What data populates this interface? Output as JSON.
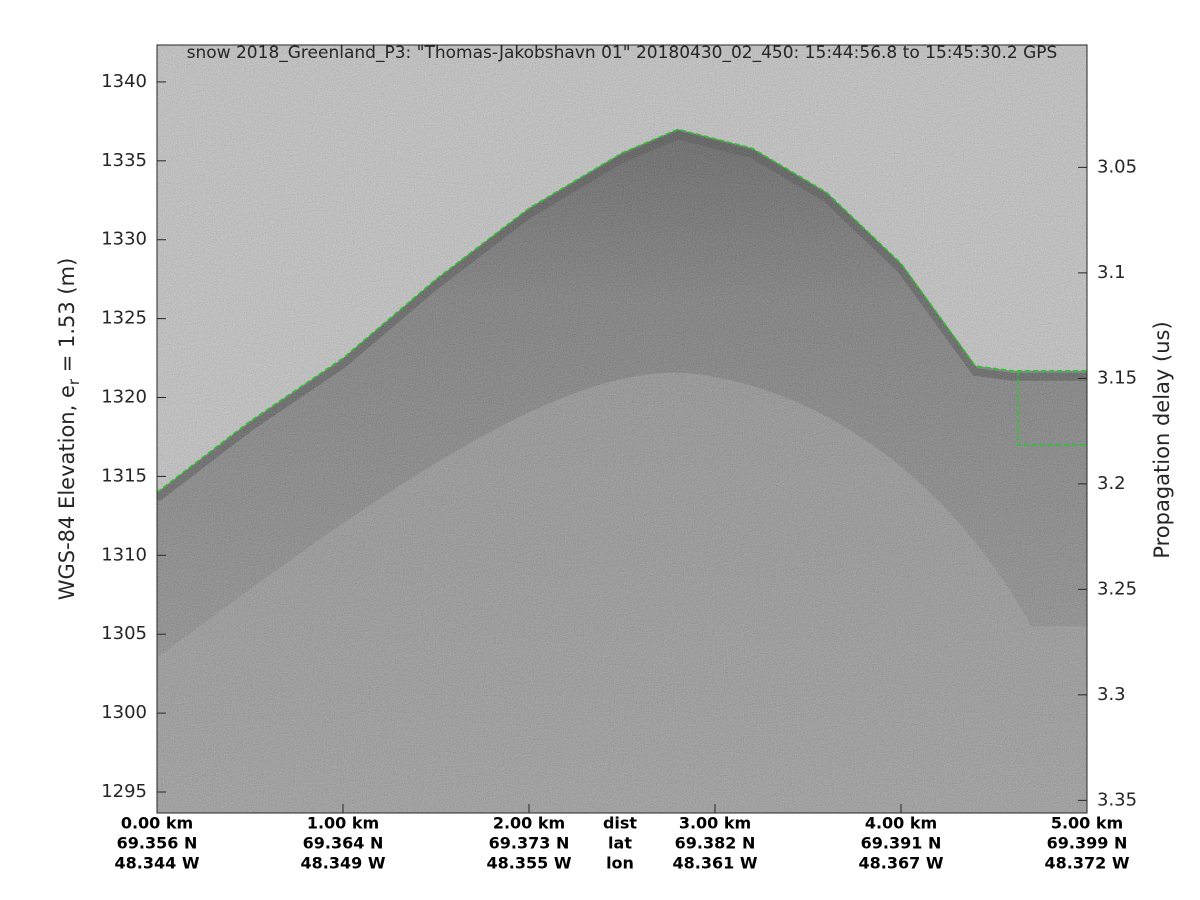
{
  "chart_data": {
    "type": "echogram",
    "title": "snow 2018_Greenland_P3: \"Thomas-Jakobshavn 01\"  20180430_02_450: 15:44:56.8 to 15:45:30.2 GPS",
    "ylabel": {
      "prefix": "WGS-84 Elevation, e",
      "sub": "r",
      "suffix": " = 1.53 (m)"
    },
    "y2label": "Propagation delay (us)",
    "xlim": [
      0,
      5
    ],
    "xticks": [
      {
        "value": 0,
        "label": "0.00 km"
      },
      {
        "value": 1,
        "label": "1.00 km"
      },
      {
        "value": 2,
        "label": "2.00 km"
      },
      {
        "value": 3,
        "label": "3.00 km"
      },
      {
        "value": 4,
        "label": "4.00 km"
      },
      {
        "value": 5,
        "label": "5.00 km"
      }
    ],
    "lat_labels": [
      "69.356 N",
      "69.364 N",
      "69.373 N",
      "69.382 N",
      "69.391 N",
      "69.399 N"
    ],
    "lon_labels": [
      "48.344 W",
      "48.349 W",
      "48.355 W",
      "48.361 W",
      "48.367 W",
      "48.372 W"
    ],
    "row_labels": [
      "dist",
      "lat",
      "lon"
    ],
    "ylim": [
      1293.67,
      1342.34
    ],
    "yticks": [
      1295,
      1300,
      1305,
      1310,
      1315,
      1320,
      1325,
      1330,
      1335,
      1340
    ],
    "y2lim": [
      3.356,
      2.992
    ],
    "y2ticks": [
      3.05,
      3.1,
      3.15,
      3.2,
      3.25,
      3.3,
      3.35
    ],
    "surface": {
      "color": "#22cc22",
      "x": [
        0,
        0.5,
        1,
        1.5,
        2,
        2.5,
        2.8,
        3.2,
        3.6,
        4,
        4.4,
        4.6,
        5,
        null,
        4.63,
        4.63,
        5
      ],
      "y": [
        1314,
        1318.5,
        1322.5,
        1327.5,
        1332,
        1335.5,
        1337,
        1335.8,
        1333,
        1328.5,
        1322,
        1321.7,
        1321.7,
        null,
        1321.7,
        1317,
        1317
      ]
    }
  }
}
